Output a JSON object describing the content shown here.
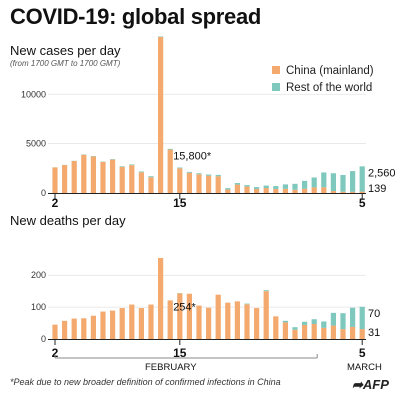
{
  "header": {
    "title": "COVID-19: global spread"
  },
  "legend": {
    "china_label": "China (mainland)",
    "row_label": "Rest of the world",
    "china_color": "#f4a96e",
    "row_color": "#7ec8bd"
  },
  "footnote": "*Peak due to new broader definition of  confirmed infections in China",
  "months": {
    "february": "FEBRUARY",
    "march": "MARCH"
  },
  "credit": {
    "text": "AFP",
    "icon": "afp-arrow-icon"
  },
  "chart_data": [
    {
      "type": "bar",
      "stacked": true,
      "title": "New cases per day",
      "subtitle": "(from 1700 GMT to 1700 GMT)",
      "x": [
        2,
        3,
        4,
        5,
        6,
        7,
        8,
        9,
        10,
        11,
        12,
        13,
        14,
        15,
        16,
        17,
        18,
        19,
        20,
        21,
        22,
        23,
        24,
        25,
        26,
        27,
        28,
        29,
        1,
        2,
        3,
        4,
        5
      ],
      "x_tick_labels": [
        "2",
        "15",
        "5"
      ],
      "y_ticks": [
        0,
        5000,
        10000
      ],
      "ylim": [
        0,
        15800
      ],
      "grid": true,
      "series": [
        {
          "name": "China (mainland)",
          "color": "#f4a96e",
          "values": [
            2590,
            2830,
            3240,
            3880,
            3700,
            3150,
            3380,
            2650,
            2820,
            2100,
            1600,
            15800,
            4400,
            2500,
            2050,
            1900,
            1750,
            1700,
            350,
            850,
            650,
            400,
            500,
            400,
            420,
            330,
            430,
            570,
            580,
            200,
            125,
            120,
            139
          ]
        },
        {
          "name": "Rest of the world",
          "color": "#7ec8bd",
          "values": [
            10,
            15,
            20,
            30,
            40,
            30,
            50,
            60,
            70,
            80,
            100,
            50,
            70,
            80,
            90,
            100,
            120,
            130,
            140,
            160,
            150,
            200,
            250,
            300,
            450,
            600,
            800,
            1000,
            1500,
            1800,
            1700,
            2100,
            2560
          ]
        }
      ],
      "annotations": [
        {
          "label": "15,800*",
          "x": 14
        },
        {
          "label": "2,560",
          "series": "Rest of the world"
        },
        {
          "label": "139",
          "series": "China (mainland)"
        }
      ]
    },
    {
      "type": "bar",
      "stacked": true,
      "title": "New deaths per day",
      "x": [
        2,
        3,
        4,
        5,
        6,
        7,
        8,
        9,
        10,
        11,
        12,
        13,
        14,
        15,
        16,
        17,
        18,
        19,
        20,
        21,
        22,
        23,
        24,
        25,
        26,
        27,
        28,
        29,
        1,
        2,
        3,
        4,
        5
      ],
      "x_tick_labels": [
        "2",
        "15",
        "5"
      ],
      "y_ticks": [
        0,
        100,
        200
      ],
      "ylim": [
        0,
        254
      ],
      "grid": true,
      "series": [
        {
          "name": "China (mainland)",
          "color": "#f4a96e",
          "values": [
            45,
            57,
            64,
            65,
            73,
            86,
            89,
            97,
            108,
            97,
            108,
            254,
            121,
            143,
            142,
            105,
            98,
            139,
            114,
            118,
            109,
            97,
            150,
            71,
            52,
            29,
            44,
            47,
            35,
            42,
            31,
            38,
            31
          ]
        },
        {
          "name": "Rest of the world",
          "color": "#7ec8bd",
          "values": [
            0,
            0,
            0,
            0,
            0,
            0,
            0,
            0,
            0,
            0,
            0,
            0,
            0,
            1,
            0,
            0,
            0,
            0,
            0,
            0,
            2,
            0,
            3,
            0,
            5,
            8,
            10,
            15,
            20,
            40,
            50,
            60,
            70
          ]
        }
      ],
      "annotations": [
        {
          "label": "254*",
          "x": 14
        },
        {
          "label": "70",
          "series": "Rest of the world"
        },
        {
          "label": "31",
          "series": "China (mainland)"
        }
      ]
    }
  ]
}
